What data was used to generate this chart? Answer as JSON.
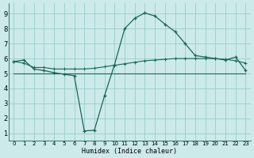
{
  "xlabel": "Humidex (Indice chaleur)",
  "bg_color": "#cceaea",
  "grid_color": "#99cccc",
  "line_color": "#1a6655",
  "xlim": [
    -0.5,
    23.5
  ],
  "ylim": [
    0.5,
    9.7
  ],
  "xticks": [
    0,
    1,
    2,
    3,
    4,
    5,
    6,
    7,
    8,
    9,
    10,
    11,
    12,
    13,
    14,
    15,
    16,
    17,
    18,
    19,
    20,
    21,
    22,
    23
  ],
  "yticks": [
    1,
    2,
    3,
    4,
    5,
    6,
    7,
    8,
    9
  ],
  "curve1_x": [
    0,
    1,
    2,
    3,
    4,
    5,
    6,
    7,
    8,
    9,
    10,
    11,
    12,
    13,
    14,
    15,
    16,
    17,
    18,
    19,
    20,
    21,
    22,
    23
  ],
  "curve1_y": [
    5.8,
    5.9,
    5.3,
    5.2,
    5.05,
    4.95,
    4.85,
    1.15,
    1.2,
    3.5,
    5.6,
    8.0,
    8.7,
    9.05,
    8.85,
    8.3,
    7.8,
    7.0,
    6.2,
    6.1,
    6.0,
    5.9,
    6.1,
    5.2
  ],
  "curve2_x": [
    0,
    1,
    2,
    3,
    4,
    5,
    6,
    7,
    8,
    9,
    10,
    11,
    12,
    13,
    14,
    15,
    16,
    17,
    18,
    19,
    20,
    21,
    22,
    23
  ],
  "curve2_y": [
    5.0,
    5.0,
    5.0,
    5.0,
    5.0,
    5.0,
    5.0,
    5.0,
    5.0,
    5.0,
    5.0,
    5.0,
    5.0,
    5.0,
    5.0,
    5.0,
    5.0,
    5.0,
    5.0,
    5.0,
    5.0,
    5.0,
    5.0,
    5.0
  ],
  "curve3_x": [
    0,
    1,
    2,
    3,
    4,
    5,
    6,
    7,
    8,
    9,
    10,
    11,
    12,
    13,
    14,
    15,
    16,
    17,
    18,
    19,
    20,
    21,
    22,
    23
  ],
  "curve3_y": [
    5.8,
    5.7,
    5.4,
    5.4,
    5.3,
    5.3,
    5.3,
    5.3,
    5.35,
    5.45,
    5.55,
    5.65,
    5.75,
    5.85,
    5.9,
    5.95,
    6.0,
    6.0,
    6.0,
    6.0,
    6.0,
    5.95,
    5.85,
    5.7
  ]
}
